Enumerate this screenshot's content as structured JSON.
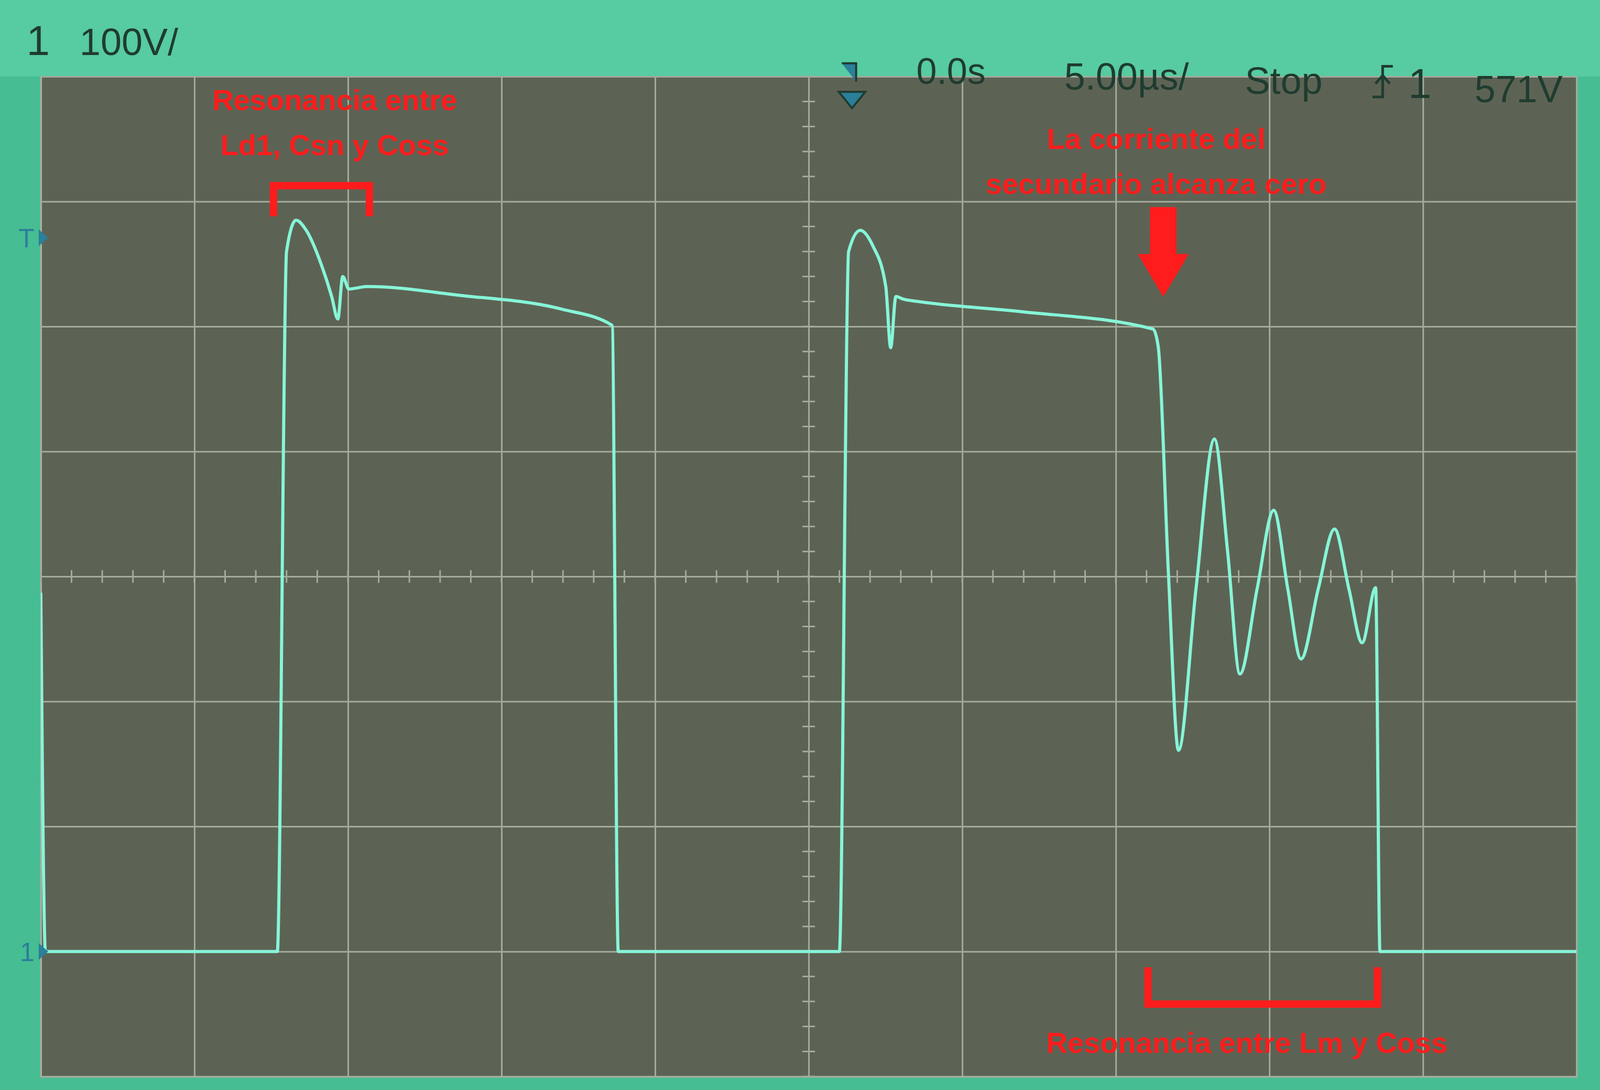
{
  "chart_data": {
    "type": "line",
    "header": {
      "channel": "1",
      "volts_per_div": "100V/",
      "time": "0.0s",
      "time_per_div": "5.00µs/",
      "status": "Stop",
      "trigger_source": "1",
      "trigger_level": "571V"
    },
    "markers": [
      {
        "label": "T",
        "value": 571
      },
      {
        "label": "1",
        "value": 0
      }
    ],
    "annotations": [
      {
        "lines": [
          "Resonancia entre",
          "Ld1, Csn y Coss"
        ]
      },
      {
        "lines": [
          "La corriente del",
          "secundario alcanza cero"
        ]
      },
      {
        "lines": [
          "Resonancia entre Lm y Coss"
        ]
      }
    ],
    "x": [
      -25,
      -24.85,
      -17.3,
      -17.0,
      -16.69,
      -16.36,
      -15.86,
      -15.53,
      -15.33,
      -15.17,
      -14.97,
      -14.37,
      -11.38,
      -8.06,
      -6.4,
      -6.2,
      1.0,
      1.3,
      1.68,
      2.08,
      2.51,
      2.67,
      2.84,
      3.07,
      3.57,
      6.89,
      11.21,
      11.38,
      11.71,
      12.04,
      12.61,
      13.21,
      13.64,
      14.04,
      14.6,
      15.14,
      15.6,
      16.03,
      16.59,
      17.12,
      17.59,
      18.02,
      18.46,
      18.6,
      25
    ],
    "series": [
      {
        "color": "#86f5d8",
        "values": [
          287,
          0,
          0,
          560,
          585,
          577,
          549,
          524,
          506,
          540,
          530,
          532,
          525,
          514,
          501,
          0,
          0,
          560,
          577,
          565,
          532,
          483,
          524,
          522,
          520,
          512,
          498,
          484,
          304,
          161,
          290,
          410,
          320,
          222,
          290,
          353,
          290,
          234,
          290,
          338,
          290,
          247,
          291,
          0,
          0
        ]
      }
    ],
    "xlim": [
      -25,
      25
    ],
    "ylim": [
      -100,
      700
    ],
    "xticks": [
      -25,
      -20,
      -15,
      -10,
      -5,
      0,
      5,
      10,
      15,
      20,
      25
    ],
    "yticks": [
      -100,
      0,
      100,
      200,
      300,
      400,
      500,
      600,
      700
    ],
    "grid": true,
    "tick_labels": false
  }
}
